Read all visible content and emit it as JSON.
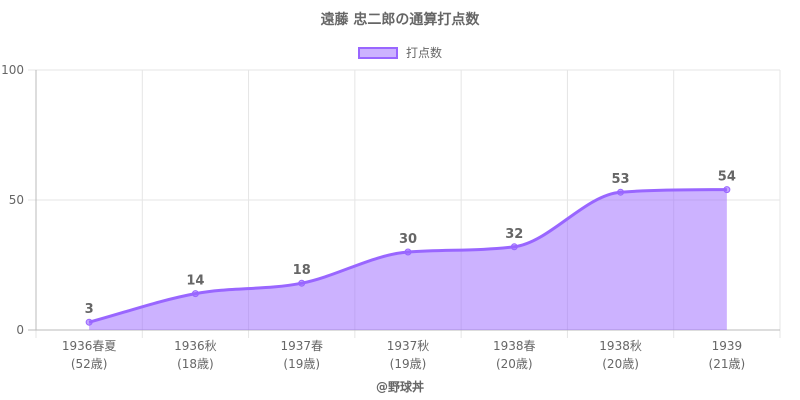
{
  "colors": {
    "line": "#9966ff",
    "fill": "rgba(153,102,255,0.5)",
    "grid": "#e5e5e5",
    "axis": "#bbbbbb",
    "text": "#666666"
  },
  "source_label": "@野球丼",
  "chart_data": {
    "type": "area",
    "title": "遠藤 忠二郎の通算打点数",
    "categories": [
      [
        "1936春夏",
        "(52歳)"
      ],
      [
        "1936秋",
        "(18歳)"
      ],
      [
        "1937春",
        "(19歳)"
      ],
      [
        "1937秋",
        "(19歳)"
      ],
      [
        "1938春",
        "(20歳)"
      ],
      [
        "1938秋",
        "(20歳)"
      ],
      [
        "1939",
        "(21歳)"
      ]
    ],
    "series": [
      {
        "name": "打点数",
        "values": [
          3,
          14,
          18,
          30,
          32,
          53,
          54
        ]
      }
    ],
    "ylim": [
      0,
      100
    ],
    "yticks": [
      0,
      50,
      100
    ],
    "grid": true,
    "legend_position": "top"
  }
}
